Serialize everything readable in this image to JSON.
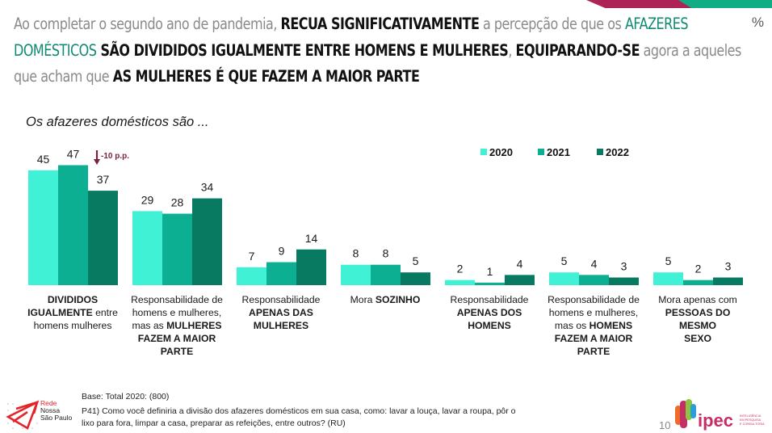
{
  "header": {
    "headline_segments": [
      {
        "text": "Ao completar o segundo ano de pandemia, ",
        "style": "grey"
      },
      {
        "text": "RECUA SIGNIFICATIVAMENTE",
        "style": "black"
      },
      {
        "text": " a percepção de que os ",
        "style": "grey"
      },
      {
        "text": "AFAZERES",
        "style": "teal"
      },
      {
        "text": "DOMÉSTICOS",
        "style": "teal",
        "newline": true
      },
      {
        "text": " SÃO DIVIDIDOS IGUALMENTE ENTRE HOMENS E MULHERES",
        "style": "black"
      },
      {
        "text": ", ",
        "style": "grey"
      },
      {
        "text": "EQUIPARANDO-SE",
        "style": "black"
      },
      {
        "text": " agora a aqueles",
        "style": "grey"
      },
      {
        "text": "que acham que ",
        "style": "grey",
        "newline": true
      },
      {
        "text": "AS MULHERES É QUE FAZEM A MAIOR PARTE",
        "style": "black"
      }
    ],
    "unit_symbol": "%"
  },
  "chart_subtitle": "Os afazeres domésticos são ...",
  "colors": {
    "2020": "#41f1d6",
    "2021": "#0daf92",
    "2022": "#087a62",
    "annotation": "#7b1f45",
    "stripe_magenta": "#ad2358",
    "stripe_green": "#10ac84"
  },
  "chart_data": {
    "type": "bar",
    "title": "Os afazeres domésticos são ...",
    "xlabel": "",
    "ylabel": "%",
    "ylim": [
      0,
      50
    ],
    "grid": false,
    "legend_position": "top-right",
    "categories": [
      "DIVIDIDOS IGUALMENTE entre homens mulheres",
      "Responsabilidade de homens e mulheres, mas as MULHERES FAZEM A MAIOR PARTE",
      "Responsabilidade APENAS DAS MULHERES",
      "Mora SOZINHO",
      "Responsabilidade APENAS DOS HOMENS",
      "Responsabilidade de homens e mulheres, mas os HOMENS FAZEM A MAIOR PARTE",
      "Mora apenas com PESSOAS DO MESMO SEXO"
    ],
    "series": [
      {
        "name": "2020",
        "values": [
          45,
          29,
          7,
          8,
          2,
          5,
          5
        ]
      },
      {
        "name": "2021",
        "values": [
          47,
          28,
          9,
          8,
          1,
          4,
          2
        ]
      },
      {
        "name": "2022",
        "values": [
          37,
          34,
          14,
          5,
          4,
          3,
          3
        ]
      }
    ],
    "annotations": [
      {
        "category_index": 0,
        "series": "2022",
        "text": "-10 p.p.",
        "icon": "arrow-down-icon"
      }
    ]
  },
  "category_labels": [
    [
      {
        "t": "DIVIDIDOS",
        "b": true
      },
      {
        "br": true
      },
      {
        "t": "IGUALMENTE",
        "b": true
      },
      {
        "t": " entre"
      },
      {
        "br": true
      },
      {
        "t": "homens  mulheres"
      }
    ],
    [
      {
        "t": "Responsabilidade de"
      },
      {
        "br": true
      },
      {
        "t": "homens e mulheres,"
      },
      {
        "br": true
      },
      {
        "t": "mas as "
      },
      {
        "t": "MULHERES",
        "b": true
      },
      {
        "br": true
      },
      {
        "t": "FAZEM A MAIOR",
        "b": true
      },
      {
        "br": true
      },
      {
        "t": "PARTE",
        "b": true
      }
    ],
    [
      {
        "t": "Responsabilidade"
      },
      {
        "br": true
      },
      {
        "t": "APENAS DAS",
        "b": true
      },
      {
        "br": true
      },
      {
        "t": "MULHERES",
        "b": true
      }
    ],
    [
      {
        "t": "Mora "
      },
      {
        "t": "SOZINHO",
        "b": true
      }
    ],
    [
      {
        "t": "Responsabilidade"
      },
      {
        "br": true
      },
      {
        "t": "APENAS DOS",
        "b": true
      },
      {
        "br": true
      },
      {
        "t": "HOMENS",
        "b": true
      }
    ],
    [
      {
        "t": "Responsabilidade de"
      },
      {
        "br": true
      },
      {
        "t": "homens e mulheres,"
      },
      {
        "br": true
      },
      {
        "t": "mas os "
      },
      {
        "t": "HOMENS",
        "b": true
      },
      {
        "br": true
      },
      {
        "t": "FAZEM A MAIOR",
        "b": true
      },
      {
        "br": true
      },
      {
        "t": "PARTE",
        "b": true
      }
    ],
    [
      {
        "t": "Mora apenas com"
      },
      {
        "br": true
      },
      {
        "t": "PESSOAS DO MESMO",
        "b": true
      },
      {
        "br": true
      },
      {
        "t": "SEXO",
        "b": true
      }
    ]
  ],
  "footer": {
    "base": "Base: Total 2020: (800)",
    "question": "P41)  Como você definiria a divisão dos afazeres domésticos em sua casa, como: lavar a louça, lavar a roupa, pôr o lixo para fora, limpar a casa, preparar as refeições, entre outros? (RU)",
    "page_number": "10",
    "logo_left": {
      "line1": "Rede",
      "line2": "Nossa",
      "line3": "São Paulo"
    },
    "logo_right": {
      "wordmark": "ipec",
      "tagline": "INTELIGÊNCIA EM PESQUISA E CONSULTORIA"
    }
  }
}
